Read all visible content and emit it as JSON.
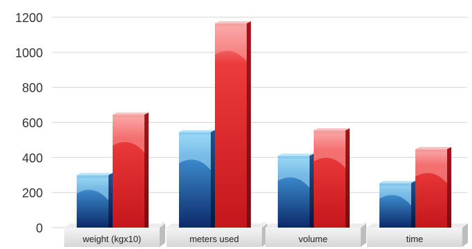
{
  "chart_data": {
    "type": "bar",
    "categories": [
      "weight (kgx10)",
      "meters used",
      "volume",
      "time"
    ],
    "series": [
      {
        "values": [
          300,
          545,
          410,
          255
        ],
        "color": "#1f4f9e"
      },
      {
        "values": [
          645,
          1165,
          555,
          448
        ],
        "color": "#d81f26"
      }
    ],
    "ylim": [
      0,
      1200
    ],
    "yticks": [
      0,
      200,
      400,
      600,
      800,
      1000,
      1200
    ],
    "grid": true,
    "title": "",
    "xlabel": "",
    "ylabel": ""
  }
}
